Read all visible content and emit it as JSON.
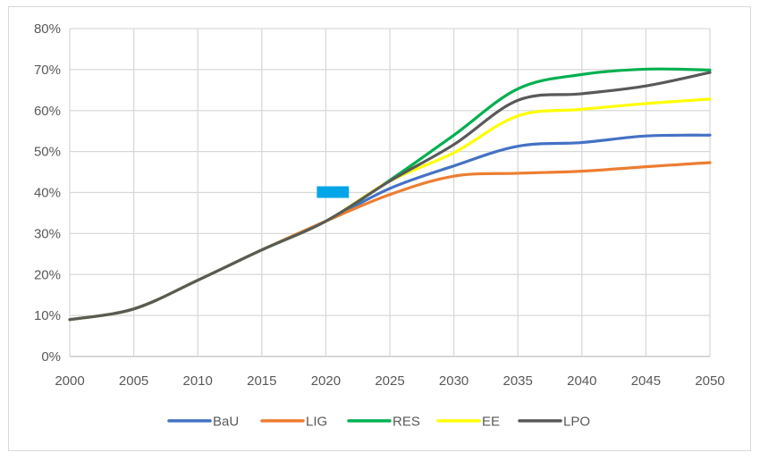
{
  "chart_data": {
    "type": "line",
    "title": "",
    "xlabel": "",
    "ylabel": "",
    "x": [
      2000,
      2005,
      2010,
      2015,
      2020,
      2025,
      2030,
      2035,
      2040,
      2045,
      2050
    ],
    "xlim": [
      2000,
      2050
    ],
    "ylim": [
      0,
      0.8
    ],
    "x_ticks": [
      "2000",
      "2005",
      "2010",
      "2015",
      "2020",
      "2025",
      "2030",
      "2035",
      "2040",
      "2045",
      "2050"
    ],
    "y_ticks": [
      "0%",
      "10%",
      "20%",
      "30%",
      "40%",
      "50%",
      "60%",
      "70%",
      "80%"
    ],
    "grid": true,
    "legend_position": "bottom",
    "series": [
      {
        "name": "BaU",
        "color": "#4472c4",
        "values": [
          0.09,
          0.116,
          0.186,
          0.26,
          0.33,
          0.41,
          0.465,
          0.513,
          0.522,
          0.538,
          0.54
        ]
      },
      {
        "name": "LIG",
        "color": "#ed7d31",
        "values": [
          0.09,
          0.116,
          0.186,
          0.26,
          0.33,
          0.395,
          0.44,
          0.447,
          0.452,
          0.463,
          0.473
        ]
      },
      {
        "name": "RES",
        "color": "#00b050",
        "values": [
          0.09,
          0.116,
          0.186,
          0.26,
          0.33,
          0.43,
          0.54,
          0.653,
          0.688,
          0.701,
          0.699
        ]
      },
      {
        "name": "EE",
        "color": "#ffff00",
        "values": [
          0.09,
          0.116,
          0.186,
          0.26,
          0.33,
          0.428,
          0.497,
          0.587,
          0.603,
          0.617,
          0.628
        ]
      },
      {
        "name": "LPO",
        "color": "#595959",
        "values": [
          0.09,
          0.116,
          0.186,
          0.26,
          0.33,
          0.428,
          0.517,
          0.625,
          0.641,
          0.66,
          0.693
        ]
      }
    ],
    "annotations": [
      {
        "type": "rectangle-marker",
        "color": "#00a6e8",
        "x_range": [
          2019.3,
          2021.8
        ],
        "y_center": 0.4
      }
    ]
  }
}
